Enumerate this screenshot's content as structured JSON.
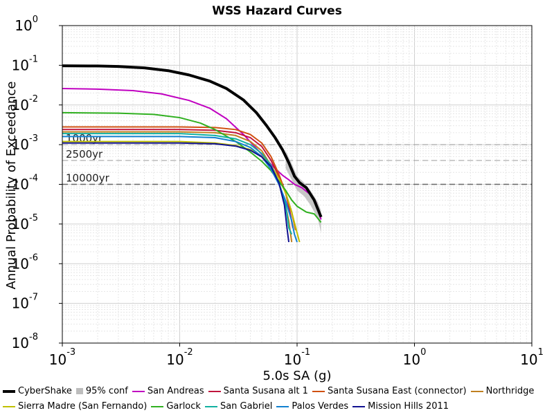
{
  "chart_data": {
    "type": "line",
    "title": "WSS Hazard Curves",
    "xlabel": "5.0s SA (g)",
    "ylabel": "Annual Probability of Exceedance",
    "xscale": "log",
    "yscale": "log",
    "xlim": [
      0.001,
      10
    ],
    "ylim": [
      1e-08,
      1
    ],
    "x_ticks": [
      {
        "base": "10",
        "exp": "-3"
      },
      {
        "base": "10",
        "exp": "-2"
      },
      {
        "base": "10",
        "exp": "-1"
      },
      {
        "base": "10",
        "exp": "0"
      },
      {
        "base": "10",
        "exp": "1"
      }
    ],
    "y_ticks": [
      {
        "base": "10",
        "exp": "-8"
      },
      {
        "base": "10",
        "exp": "-7"
      },
      {
        "base": "10",
        "exp": "-6"
      },
      {
        "base": "10",
        "exp": "-5"
      },
      {
        "base": "10",
        "exp": "-4"
      },
      {
        "base": "10",
        "exp": "-3"
      },
      {
        "base": "10",
        "exp": "-2"
      },
      {
        "base": "10",
        "exp": "-1"
      },
      {
        "base": "10",
        "exp": "0"
      }
    ],
    "grid": true,
    "reference_lines": [
      {
        "label": "1000yr",
        "y": 0.001
      },
      {
        "label": "2500yr",
        "y": 0.0004
      },
      {
        "label": "10000yr",
        "y": 0.0001
      }
    ],
    "confidence_band": {
      "name": "95% conf",
      "color": "#bdbdbd",
      "x": [
        0.08,
        0.09,
        0.1,
        0.115,
        0.13,
        0.15,
        0.16
      ],
      "low": [
        0.00025,
        0.00013,
        7e-05,
        5e-05,
        3e-05,
        1.4e-05,
        6e-06
      ],
      "high": [
        0.0007,
        0.00033,
        0.00016,
        0.00011,
        7e-05,
        3.6e-05,
        2.2e-05
      ]
    },
    "series": [
      {
        "name": "CyberShake",
        "color": "#000000",
        "width": 4,
        "x": [
          0.001,
          0.002,
          0.003,
          0.005,
          0.008,
          0.012,
          0.018,
          0.025,
          0.035,
          0.045,
          0.055,
          0.065,
          0.075,
          0.085,
          0.095,
          0.105,
          0.12,
          0.14,
          0.16
        ],
        "y": [
          0.097,
          0.096,
          0.093,
          0.086,
          0.073,
          0.057,
          0.04,
          0.026,
          0.0133,
          0.0064,
          0.003,
          0.0015,
          0.00075,
          0.00035,
          0.00016,
          0.00011,
          8.2e-05,
          4e-05,
          1.5e-05
        ]
      },
      {
        "name": "San Andreas",
        "color": "#c000c0",
        "width": 2,
        "x": [
          0.001,
          0.002,
          0.004,
          0.007,
          0.012,
          0.018,
          0.025,
          0.035,
          0.045,
          0.055,
          0.065,
          0.075,
          0.085,
          0.095,
          0.11,
          0.13,
          0.145,
          0.16
        ],
        "y": [
          0.026,
          0.025,
          0.023,
          0.019,
          0.013,
          0.0083,
          0.0045,
          0.0018,
          0.0008,
          0.00042,
          0.00025,
          0.00017,
          0.00013,
          0.0001,
          8.2e-05,
          5.5e-05,
          3.5e-05,
          1.3e-05
        ]
      },
      {
        "name": "Santa Susana alt 1",
        "color": "#c0143c",
        "width": 2,
        "x": [
          0.001,
          0.01,
          0.02,
          0.03,
          0.04,
          0.05,
          0.06,
          0.07,
          0.08,
          0.087,
          0.092
        ],
        "y": [
          0.0024,
          0.0024,
          0.0023,
          0.002,
          0.0015,
          0.0009,
          0.0004,
          0.00016,
          6e-05,
          2e-05,
          8e-06
        ]
      },
      {
        "name": "Santa Susana East (connector)",
        "color": "#d05010",
        "width": 2,
        "x": [
          0.001,
          0.01,
          0.02,
          0.03,
          0.04,
          0.05,
          0.06,
          0.07,
          0.08,
          0.09,
          0.097
        ],
        "y": [
          0.0028,
          0.0028,
          0.0027,
          0.0024,
          0.0018,
          0.0011,
          0.0005,
          0.00018,
          6e-05,
          2e-05,
          7e-06
        ]
      },
      {
        "name": "Northridge",
        "color": "#c08020",
        "width": 2,
        "x": [
          0.001,
          0.01,
          0.02,
          0.03,
          0.04,
          0.05,
          0.06,
          0.07,
          0.078,
          0.085,
          0.09
        ],
        "y": [
          0.0021,
          0.0021,
          0.002,
          0.0017,
          0.0012,
          0.0007,
          0.0003,
          0.00011,
          4e-05,
          1.2e-05,
          3.5e-06
        ]
      },
      {
        "name": "Sierra Madre (San Fernando)",
        "color": "#c0c000",
        "width": 2,
        "x": [
          0.001,
          0.01,
          0.02,
          0.03,
          0.04,
          0.05,
          0.06,
          0.07,
          0.08,
          0.09,
          0.1,
          0.105
        ],
        "y": [
          0.0012,
          0.0012,
          0.0011,
          0.00095,
          0.00075,
          0.00051,
          0.0003,
          0.00014,
          6e-05,
          2e-05,
          6e-06,
          3.5e-06
        ]
      },
      {
        "name": "Garlock",
        "color": "#30b020",
        "width": 2,
        "x": [
          0.001,
          0.003,
          0.006,
          0.01,
          0.015,
          0.02,
          0.03,
          0.04,
          0.05,
          0.06,
          0.07,
          0.08,
          0.09,
          0.1,
          0.12,
          0.14,
          0.16
        ],
        "y": [
          0.0064,
          0.0062,
          0.0058,
          0.0048,
          0.0035,
          0.0024,
          0.0012,
          0.00065,
          0.00038,
          0.00022,
          0.00012,
          7e-05,
          4e-05,
          2.8e-05,
          2e-05,
          1.8e-05,
          1.1e-05
        ]
      },
      {
        "name": "San Gabriel",
        "color": "#10b0a0",
        "width": 2,
        "x": [
          0.001,
          0.01,
          0.02,
          0.03,
          0.04,
          0.05,
          0.06,
          0.07,
          0.08,
          0.085,
          0.09
        ],
        "y": [
          0.0019,
          0.0019,
          0.0017,
          0.0014,
          0.001,
          0.0006,
          0.0003,
          0.00011,
          3e-05,
          8e-06,
          5.5e-06
        ]
      },
      {
        "name": "Palos Verdes",
        "color": "#1080d0",
        "width": 2,
        "x": [
          0.001,
          0.01,
          0.02,
          0.03,
          0.04,
          0.05,
          0.06,
          0.07,
          0.08,
          0.09,
          0.095,
          0.1
        ],
        "y": [
          0.0016,
          0.0016,
          0.0015,
          0.0012,
          0.00085,
          0.0005,
          0.00024,
          0.0001,
          3.8e-05,
          1.2e-05,
          5.5e-06,
          3.5e-06
        ]
      },
      {
        "name": "Mission Hills 2011",
        "color": "#101090",
        "width": 2,
        "x": [
          0.001,
          0.01,
          0.02,
          0.03,
          0.04,
          0.05,
          0.06,
          0.07,
          0.078,
          0.082,
          0.085
        ],
        "y": [
          0.0011,
          0.0011,
          0.00105,
          0.00092,
          0.00072,
          0.00049,
          0.00028,
          0.00011,
          3e-05,
          8e-06,
          3.5e-06
        ]
      }
    ]
  },
  "legend": {
    "row1": [
      {
        "label": "CyberShake",
        "color": "#000000",
        "kind": "thick"
      },
      {
        "label": "95% conf",
        "color": "#bdbdbd",
        "kind": "band"
      },
      {
        "label": "San Andreas",
        "color": "#c000c0",
        "kind": "line"
      },
      {
        "label": "Santa Susana alt 1",
        "color": "#c0143c",
        "kind": "line"
      },
      {
        "label": "Santa Susana East (connector)",
        "color": "#d05010",
        "kind": "line"
      },
      {
        "label": "Northridge",
        "color": "#c08020",
        "kind": "line"
      }
    ],
    "row2": [
      {
        "label": "Sierra Madre (San Fernando)",
        "color": "#c0c000",
        "kind": "line"
      },
      {
        "label": "Garlock",
        "color": "#30b020",
        "kind": "line"
      },
      {
        "label": "San Gabriel",
        "color": "#10b0a0",
        "kind": "line"
      },
      {
        "label": "Palos Verdes",
        "color": "#1080d0",
        "kind": "line"
      },
      {
        "label": "Mission Hills 2011",
        "color": "#101090",
        "kind": "line"
      }
    ]
  }
}
